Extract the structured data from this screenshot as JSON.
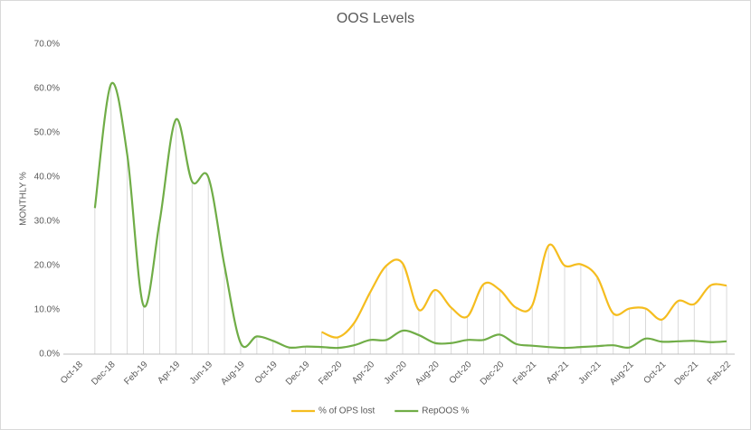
{
  "chart_data": {
    "type": "line",
    "title": "OOS Levels",
    "y_label": "MONTHLY %",
    "categories": [
      "Oct-18",
      null,
      "Dec-18",
      null,
      "Feb-19",
      null,
      "Apr-19",
      null,
      "Jun-19",
      null,
      "Aug-19",
      null,
      "Oct-19",
      null,
      "Dec-19",
      null,
      "Feb-20",
      null,
      "Apr-20",
      null,
      "Jun-20",
      null,
      "Aug-20",
      null,
      "Oct-20",
      null,
      "Dec-20",
      null,
      "Feb-21",
      null,
      "Apr-21",
      null,
      "Jun-21",
      null,
      "Aug-21",
      null,
      "Oct-21",
      null,
      "Dec-21",
      null,
      "Feb-22"
    ],
    "series": [
      {
        "name": "% of OPS lost",
        "color": "#f5bd1f",
        "values": [
          null,
          null,
          null,
          null,
          null,
          null,
          null,
          null,
          null,
          null,
          null,
          null,
          null,
          null,
          null,
          5,
          3.8,
          7,
          14,
          20,
          20.5,
          10,
          14.5,
          10.5,
          8.5,
          15.8,
          14.5,
          10.5,
          11,
          24.5,
          20,
          20.3,
          17.5,
          9.2,
          10.3,
          10.3,
          7.8,
          12,
          11.3,
          15.5,
          15.5
        ]
      },
      {
        "name": "RepOOS %",
        "color": "#70ad47",
        "values": [
          null,
          33,
          61,
          45,
          11,
          30,
          53,
          39,
          40,
          20,
          2.5,
          4,
          3,
          1.5,
          1.7,
          1.6,
          1.4,
          2,
          3.2,
          3.2,
          5.3,
          4.3,
          2.5,
          2.5,
          3.2,
          3.2,
          4.4,
          2.3,
          1.9,
          1.6,
          1.4,
          1.6,
          1.8,
          2,
          1.5,
          3.5,
          2.8,
          2.9,
          3,
          2.7,
          2.9
        ]
      }
    ],
    "ylim": [
      0,
      70
    ],
    "yticks": [
      {
        "value": 0,
        "label": "0.0%"
      },
      {
        "value": 10,
        "label": "10.0%"
      },
      {
        "value": 20,
        "label": "20.0%"
      },
      {
        "value": 30,
        "label": "30.0%"
      },
      {
        "value": 40,
        "label": "40.0%"
      },
      {
        "value": 50,
        "label": "50.0%"
      },
      {
        "value": 60,
        "label": "60.0%"
      },
      {
        "value": 70,
        "label": "70.0%"
      }
    ],
    "legend": "bottom"
  }
}
